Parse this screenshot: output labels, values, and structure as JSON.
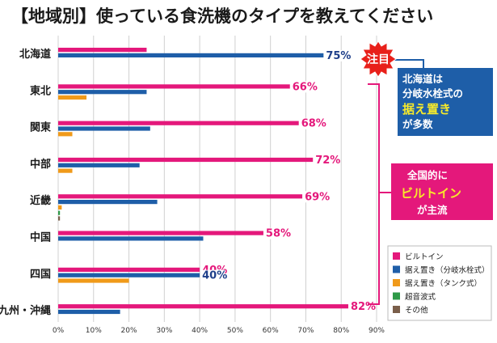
{
  "chart_data": {
    "type": "bar",
    "title": "【地域別】使っている食洗機のタイプを教えてください",
    "categories": [
      "北海道",
      "東北",
      "関東",
      "中部",
      "近畿",
      "中国",
      "四国",
      "九州・沖縄"
    ],
    "x_ticks": [
      "0%",
      "10%",
      "20%",
      "30%",
      "40%",
      "50%",
      "60%",
      "70%",
      "80%",
      "90%"
    ],
    "xlim": [
      0,
      90
    ],
    "orientation": "horizontal",
    "grid": true,
    "legend_position": "bottom-right",
    "series": [
      {
        "name": "ビルトイン",
        "color": "#e4187b",
        "values": [
          25,
          65.5,
          68,
          72,
          69,
          58,
          40,
          82
        ]
      },
      {
        "name": "据え置き（分岐水栓式）",
        "color": "#1e5ea8",
        "values": [
          75,
          25,
          26,
          23,
          28,
          41,
          40,
          17.5
        ]
      },
      {
        "name": "据え置き（タンク式）",
        "color": "#f09a1a",
        "values": [
          0,
          8,
          4,
          4,
          1,
          0,
          20,
          0
        ]
      },
      {
        "name": "超音波式",
        "color": "#2e9a48",
        "values": [
          0,
          0,
          0,
          0,
          0.5,
          0,
          0,
          0
        ]
      },
      {
        "name": "その他",
        "color": "#7a5e4a",
        "values": [
          0,
          0,
          0,
          0,
          0.5,
          0,
          0,
          0
        ]
      }
    ],
    "data_labels": [
      {
        "category": 0,
        "series": 1,
        "text": "75%",
        "color": "#1e3f8a"
      },
      {
        "category": 1,
        "series": 0,
        "text": "66%",
        "color": "#e4187b"
      },
      {
        "category": 2,
        "series": 0,
        "text": "68%",
        "color": "#e4187b"
      },
      {
        "category": 3,
        "series": 0,
        "text": "72%",
        "color": "#e4187b"
      },
      {
        "category": 4,
        "series": 0,
        "text": "69%",
        "color": "#e4187b"
      },
      {
        "category": 5,
        "series": 0,
        "text": "58%",
        "color": "#e4187b"
      },
      {
        "category": 6,
        "series": 0,
        "text": "40%",
        "color": "#e4187b"
      },
      {
        "category": 6,
        "series": 1,
        "text": "40%",
        "color": "#1e3f8a"
      },
      {
        "category": 7,
        "series": 0,
        "text": "82%",
        "color": "#e4187b"
      }
    ],
    "annotations": {
      "badge": "注目",
      "hokkaido_note": {
        "line1": "北海道は",
        "line2": "分岐水栓式の",
        "highlight": "据え置き",
        "line4": "が多数"
      },
      "national_note": {
        "line1": "全国的に",
        "highlight": "ビルトイン",
        "line3": "が主流"
      }
    }
  },
  "colors": {
    "highlight_yellow": "#f7ea2a",
    "note_blue": "#1e5ea8",
    "note_pink": "#e4187b",
    "badge_red": "#e8201a"
  }
}
